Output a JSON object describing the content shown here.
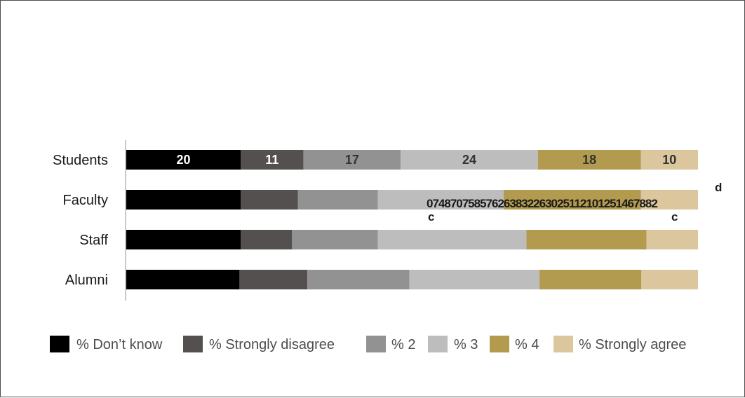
{
  "chart_data": {
    "type": "bar",
    "orientation": "horizontal",
    "stacked": true,
    "categories": [
      "Students",
      "Faculty",
      "Staff",
      "Alumni"
    ],
    "series": [
      {
        "name": "% Don’t know",
        "color": "#000000",
        "values": [
          20,
          20,
          20,
          20
        ]
      },
      {
        "name": "% Strongly disagree",
        "color": "#545050",
        "values": [
          11,
          10,
          9,
          12
        ]
      },
      {
        "name": "% 2",
        "color": "#929292",
        "values": [
          17,
          14,
          15,
          18
        ]
      },
      {
        "name": "% 3",
        "color": "#bdbdbd",
        "values": [
          24,
          22,
          26,
          23
        ]
      },
      {
        "name": "% 4",
        "color": "#b29b4e",
        "values": [
          18,
          24,
          21,
          18
        ]
      },
      {
        "name": "% Strongly agree",
        "color": "#dbc69e",
        "values": [
          10,
          10,
          9,
          10
        ]
      }
    ],
    "data_labels": {
      "Students": [
        "20",
        "11",
        "17",
        "24",
        "18",
        "10"
      ]
    },
    "overlap_text": {
      "main": "074870758576263832263025112101251467882",
      "sub_left": "c",
      "sub_right": "c",
      "sup_right": "d"
    },
    "value_label_colors": [
      "#ffffff",
      "#ffffff",
      "#333333",
      "#333333",
      "#333333",
      "#333333"
    ],
    "legend_position": "bottom",
    "grid": false
  }
}
